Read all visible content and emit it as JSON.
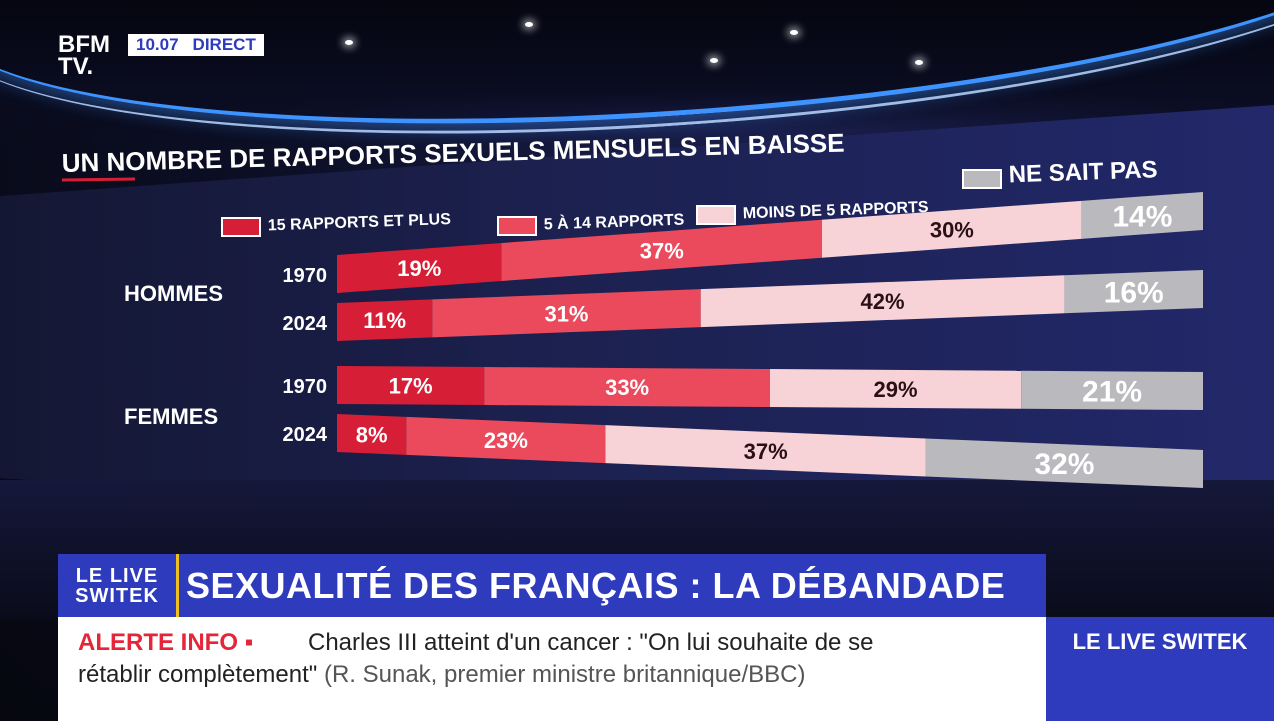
{
  "channel": {
    "logo_line1": "BFM",
    "logo_line2": "TV.",
    "time": "10.07",
    "live_label": "DIRECT"
  },
  "chart_data": {
    "type": "bar",
    "orientation": "horizontal",
    "stacked": true,
    "title": "UN NOMBRE DE RAPPORTS SEXUELS MENSUELS EN BAISSE",
    "legend": [
      {
        "label": "15 RAPPORTS ET PLUS",
        "color": "#d61f36"
      },
      {
        "label": "5 À 14 RAPPORTS",
        "color": "#ea4a5c"
      },
      {
        "label": "MOINS DE 5 RAPPORTS",
        "color": "#f7d3d8"
      },
      {
        "label": "NE SAIT PAS",
        "color": "#b9b9be"
      }
    ],
    "groups": [
      {
        "label": "HOMMES",
        "rows": [
          {
            "year": "1970",
            "values": [
              19,
              37,
              30,
              14
            ],
            "labels": [
              "19%",
              "37%",
              "30%",
              "14%"
            ]
          },
          {
            "year": "2024",
            "values": [
              11,
              31,
              42,
              16
            ],
            "labels": [
              "11%",
              "31%",
              "42%",
              "16%"
            ]
          }
        ]
      },
      {
        "label": "FEMMES",
        "rows": [
          {
            "year": "1970",
            "values": [
              17,
              33,
              29,
              21
            ],
            "labels": [
              "17%",
              "33%",
              "29%",
              "21%"
            ]
          },
          {
            "year": "2024",
            "values": [
              8,
              23,
              37,
              32
            ],
            "labels": [
              "8%",
              "23%",
              "37%",
              "32%"
            ]
          }
        ]
      }
    ],
    "xlim": [
      0,
      100
    ]
  },
  "banner": {
    "logo_line1": "LE LIVE",
    "logo_line2": "SWITEK",
    "title": "SEXUALITÉ DES FRANÇAIS : LA DÉBANDADE"
  },
  "ticker": {
    "alert_label": "ALERTE INFO ▪",
    "text_line1": "Charles III atteint d'un cancer : \"On lui souhaite de se",
    "text_line2": "rétablir complètement\"",
    "source": "(R. Sunak, premier ministre britannique/BBC)",
    "side_label": "LE LIVE SWITEK"
  }
}
